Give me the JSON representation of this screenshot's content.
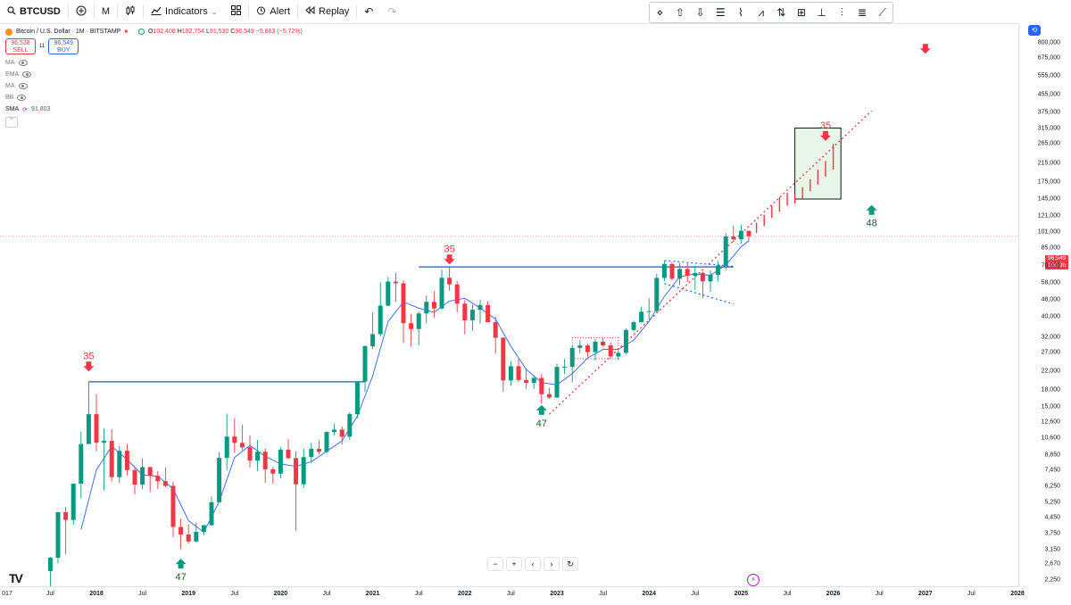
{
  "toolbar": {
    "symbol": "BTCUSD",
    "add_icon": "plus-circle-icon",
    "interval": "M",
    "chart_type_icon": "candles-icon",
    "indicators_label": "Indicators",
    "layout_icon": "grid-icon",
    "alert_label": "Alert",
    "replay_label": "Replay",
    "undo_icon": "undo-icon",
    "redo_icon": "redo-icon"
  },
  "drawing_tools": [
    "diamond-icon",
    "arrow-up-icon",
    "arrow-down-icon",
    "fib-icon",
    "pattern-icon",
    "zigzag-icon",
    "forecast-icon",
    "long-position-icon",
    "measure-icon",
    "bars-pattern-icon",
    "fib-channel-icon",
    "trend-line-icon"
  ],
  "legend": {
    "title": "Bitcoin / U.S. Dollar · 1M · BITSTAMP",
    "ohlc": {
      "o_label": "O",
      "o": "102,408",
      "h_label": "H",
      "h": "102,754",
      "l_label": "L",
      "l": "91,530",
      "c_label": "C",
      "c": "96,549",
      "change": "−5,863 (−5.72%)"
    },
    "sell_price": "96,538",
    "sell_label": "SELL",
    "spread": "11",
    "buy_price": "96,549",
    "buy_label": "BUY",
    "indicators": [
      {
        "name": "MA"
      },
      {
        "name": "EMA"
      },
      {
        "name": "MA"
      },
      {
        "name": "BB"
      },
      {
        "name": "SMA",
        "value": "91,803"
      }
    ]
  },
  "price_axis": {
    "labels": [
      "800,000",
      "675,000",
      "555,000",
      "455,000",
      "375,000",
      "315,000",
      "265,000",
      "215,000",
      "175,000",
      "145,000",
      "121,000",
      "101,000",
      "85,000",
      "70,000",
      "58,000",
      "48,000",
      "40,000",
      "32,000",
      "27,000",
      "22,000",
      "18,000",
      "15,000",
      "12,600",
      "10,600",
      "8,850",
      "7,450",
      "6,250",
      "5,250",
      "4,450",
      "3,750",
      "3,150",
      "2,670",
      "2,250"
    ],
    "current_price": "96,549",
    "countdown": "19d 9h"
  },
  "time_axis": {
    "labels": [
      "017",
      "Jul",
      "2018",
      "Jul",
      "2019",
      "Jul",
      "2020",
      "Jul",
      "2021",
      "Jul",
      "2022",
      "Jul",
      "2023",
      "Jul",
      "2024",
      "Jul",
      "2025",
      "Jul",
      "2026",
      "Jul",
      "2027",
      "Jul",
      "2028"
    ]
  },
  "annotations": {
    "count_2018": "35",
    "count_2019": "47",
    "count_2021": "35",
    "count_2022": "47",
    "count_top": "35",
    "count_2026": "48"
  },
  "navigation": [
    "−",
    "+",
    "‹",
    "›",
    "↻"
  ],
  "colors": {
    "up": "#089981",
    "down": "#f23645",
    "sma": "#2962ff",
    "resistance": "#1e53e5",
    "trend": "#f23645",
    "box_fill": "#e8f5e9"
  },
  "chart_data": {
    "type": "candlestick",
    "symbol": "BTCUSD",
    "interval": "1M",
    "scale": "log",
    "ylim": [
      2100,
      900000
    ],
    "candles": [
      {
        "t": "2017-07",
        "o": 2480,
        "h": 2900,
        "l": 2000,
        "c": 2870
      },
      {
        "t": "2017-08",
        "o": 2870,
        "h": 4700,
        "l": 2700,
        "c": 4730
      },
      {
        "t": "2017-09",
        "o": 4730,
        "h": 5000,
        "l": 2980,
        "c": 4340
      },
      {
        "t": "2017-10",
        "o": 4340,
        "h": 6470,
        "l": 4100,
        "c": 6450
      },
      {
        "t": "2017-11",
        "o": 6450,
        "h": 11400,
        "l": 5500,
        "c": 9950
      },
      {
        "t": "2017-12",
        "o": 9950,
        "h": 19650,
        "l": 10800,
        "c": 13800
      },
      {
        "t": "2018-01",
        "o": 13800,
        "h": 17200,
        "l": 9200,
        "c": 10100
      },
      {
        "t": "2018-02",
        "o": 10100,
        "h": 11800,
        "l": 6000,
        "c": 10300
      },
      {
        "t": "2018-03",
        "o": 10300,
        "h": 11700,
        "l": 6600,
        "c": 6930
      },
      {
        "t": "2018-04",
        "o": 6930,
        "h": 9750,
        "l": 6500,
        "c": 9240
      },
      {
        "t": "2018-05",
        "o": 9240,
        "h": 9980,
        "l": 7050,
        "c": 7490
      },
      {
        "t": "2018-06",
        "o": 7490,
        "h": 7770,
        "l": 5750,
        "c": 6390
      },
      {
        "t": "2018-07",
        "o": 6390,
        "h": 8490,
        "l": 6070,
        "c": 7730
      },
      {
        "t": "2018-08",
        "o": 7730,
        "h": 7760,
        "l": 5880,
        "c": 7030
      },
      {
        "t": "2018-09",
        "o": 7030,
        "h": 7400,
        "l": 6100,
        "c": 6630
      },
      {
        "t": "2018-10",
        "o": 6630,
        "h": 7700,
        "l": 6200,
        "c": 6300
      },
      {
        "t": "2018-11",
        "o": 6300,
        "h": 6580,
        "l": 3600,
        "c": 4020
      },
      {
        "t": "2018-12",
        "o": 4020,
        "h": 4400,
        "l": 3150,
        "c": 3700
      },
      {
        "t": "2019-01",
        "o": 3700,
        "h": 4140,
        "l": 3350,
        "c": 3430
      },
      {
        "t": "2019-02",
        "o": 3430,
        "h": 4200,
        "l": 3400,
        "c": 3810
      },
      {
        "t": "2019-03",
        "o": 3810,
        "h": 4100,
        "l": 3670,
        "c": 4100
      },
      {
        "t": "2019-04",
        "o": 4100,
        "h": 5600,
        "l": 4050,
        "c": 5270
      },
      {
        "t": "2019-05",
        "o": 5270,
        "h": 9100,
        "l": 5300,
        "c": 8550
      },
      {
        "t": "2019-06",
        "o": 8550,
        "h": 13880,
        "l": 7500,
        "c": 10800
      },
      {
        "t": "2019-07",
        "o": 10800,
        "h": 13200,
        "l": 9070,
        "c": 10080
      },
      {
        "t": "2019-08",
        "o": 10080,
        "h": 12300,
        "l": 9300,
        "c": 9600
      },
      {
        "t": "2019-09",
        "o": 9600,
        "h": 10900,
        "l": 7700,
        "c": 8300
      },
      {
        "t": "2019-10",
        "o": 8300,
        "h": 10400,
        "l": 7400,
        "c": 9150
      },
      {
        "t": "2019-11",
        "o": 9150,
        "h": 9500,
        "l": 6500,
        "c": 7550
      },
      {
        "t": "2019-12",
        "o": 7550,
        "h": 7750,
        "l": 6430,
        "c": 7200
      },
      {
        "t": "2020-01",
        "o": 7200,
        "h": 9580,
        "l": 6850,
        "c": 9350
      },
      {
        "t": "2020-02",
        "o": 9350,
        "h": 10500,
        "l": 8450,
        "c": 8530
      },
      {
        "t": "2020-03",
        "o": 8530,
        "h": 9200,
        "l": 3850,
        "c": 6410
      },
      {
        "t": "2020-04",
        "o": 6410,
        "h": 9460,
        "l": 6150,
        "c": 8630
      },
      {
        "t": "2020-05",
        "o": 8630,
        "h": 10080,
        "l": 8100,
        "c": 9450
      },
      {
        "t": "2020-06",
        "o": 9450,
        "h": 10400,
        "l": 8900,
        "c": 9140
      },
      {
        "t": "2020-07",
        "o": 9140,
        "h": 11450,
        "l": 8990,
        "c": 11350
      },
      {
        "t": "2020-08",
        "o": 11350,
        "h": 12470,
        "l": 10950,
        "c": 11650
      },
      {
        "t": "2020-09",
        "o": 11650,
        "h": 12080,
        "l": 9900,
        "c": 10780
      },
      {
        "t": "2020-10",
        "o": 10780,
        "h": 14100,
        "l": 10400,
        "c": 13800
      },
      {
        "t": "2020-11",
        "o": 13800,
        "h": 19860,
        "l": 13200,
        "c": 19700
      },
      {
        "t": "2020-12",
        "o": 19700,
        "h": 29300,
        "l": 17600,
        "c": 28990
      },
      {
        "t": "2021-01",
        "o": 28990,
        "h": 41950,
        "l": 28130,
        "c": 33100
      },
      {
        "t": "2021-02",
        "o": 33100,
        "h": 58350,
        "l": 32300,
        "c": 45200
      },
      {
        "t": "2021-03",
        "o": 45200,
        "h": 61780,
        "l": 45000,
        "c": 58800
      },
      {
        "t": "2021-04",
        "o": 58800,
        "h": 64900,
        "l": 47000,
        "c": 57700
      },
      {
        "t": "2021-05",
        "o": 57700,
        "h": 59600,
        "l": 30000,
        "c": 37300
      },
      {
        "t": "2021-06",
        "o": 37300,
        "h": 41300,
        "l": 28800,
        "c": 35000
      },
      {
        "t": "2021-07",
        "o": 35000,
        "h": 42300,
        "l": 29300,
        "c": 41500
      },
      {
        "t": "2021-08",
        "o": 41500,
        "h": 50500,
        "l": 37300,
        "c": 47100
      },
      {
        "t": "2021-09",
        "o": 47100,
        "h": 52900,
        "l": 39600,
        "c": 43800
      },
      {
        "t": "2021-10",
        "o": 43800,
        "h": 66990,
        "l": 43300,
        "c": 61300
      },
      {
        "t": "2021-11",
        "o": 61300,
        "h": 69000,
        "l": 53250,
        "c": 57000
      },
      {
        "t": "2021-12",
        "o": 57000,
        "h": 59100,
        "l": 42000,
        "c": 46200
      },
      {
        "t": "2022-01",
        "o": 46200,
        "h": 47990,
        "l": 32950,
        "c": 38500
      },
      {
        "t": "2022-02",
        "o": 38500,
        "h": 45800,
        "l": 34300,
        "c": 43200
      },
      {
        "t": "2022-03",
        "o": 43200,
        "h": 48200,
        "l": 37200,
        "c": 45500
      },
      {
        "t": "2022-04",
        "o": 45500,
        "h": 47450,
        "l": 37700,
        "c": 37700
      },
      {
        "t": "2022-05",
        "o": 37700,
        "h": 39950,
        "l": 26700,
        "c": 31800
      },
      {
        "t": "2022-06",
        "o": 31800,
        "h": 31980,
        "l": 17600,
        "c": 19950
      },
      {
        "t": "2022-07",
        "o": 19950,
        "h": 24650,
        "l": 18800,
        "c": 23300
      },
      {
        "t": "2022-08",
        "o": 23300,
        "h": 25200,
        "l": 19600,
        "c": 20050
      },
      {
        "t": "2022-09",
        "o": 20050,
        "h": 22800,
        "l": 18200,
        "c": 19420
      },
      {
        "t": "2022-10",
        "o": 19420,
        "h": 21080,
        "l": 18200,
        "c": 20500
      },
      {
        "t": "2022-11",
        "o": 20500,
        "h": 21450,
        "l": 15480,
        "c": 17170
      },
      {
        "t": "2022-12",
        "o": 17170,
        "h": 18400,
        "l": 16300,
        "c": 16540
      },
      {
        "t": "2023-01",
        "o": 16540,
        "h": 23950,
        "l": 16500,
        "c": 23130
      },
      {
        "t": "2023-02",
        "o": 23130,
        "h": 25250,
        "l": 21400,
        "c": 23150
      },
      {
        "t": "2023-03",
        "o": 23150,
        "h": 29200,
        "l": 19550,
        "c": 28480
      },
      {
        "t": "2023-04",
        "o": 28480,
        "h": 31000,
        "l": 26800,
        "c": 29250
      },
      {
        "t": "2023-05",
        "o": 29250,
        "h": 29850,
        "l": 25800,
        "c": 27200
      },
      {
        "t": "2023-06",
        "o": 27200,
        "h": 31450,
        "l": 24800,
        "c": 30480
      },
      {
        "t": "2023-07",
        "o": 30480,
        "h": 31800,
        "l": 28850,
        "c": 29250
      },
      {
        "t": "2023-08",
        "o": 29250,
        "h": 30220,
        "l": 25300,
        "c": 25950
      },
      {
        "t": "2023-09",
        "o": 25950,
        "h": 27490,
        "l": 24900,
        "c": 26970
      },
      {
        "t": "2023-10",
        "o": 26970,
        "h": 35200,
        "l": 26550,
        "c": 34650
      },
      {
        "t": "2023-11",
        "o": 34650,
        "h": 38400,
        "l": 34100,
        "c": 37720
      },
      {
        "t": "2023-12",
        "o": 37720,
        "h": 44700,
        "l": 37600,
        "c": 42280
      },
      {
        "t": "2024-01",
        "o": 42280,
        "h": 48970,
        "l": 38550,
        "c": 42580
      },
      {
        "t": "2024-02",
        "o": 42580,
        "h": 64000,
        "l": 41900,
        "c": 61200
      },
      {
        "t": "2024-03",
        "o": 61200,
        "h": 73800,
        "l": 59100,
        "c": 71300
      },
      {
        "t": "2024-04",
        "o": 71300,
        "h": 72750,
        "l": 59500,
        "c": 60650
      },
      {
        "t": "2024-05",
        "o": 60650,
        "h": 72000,
        "l": 56500,
        "c": 67500
      },
      {
        "t": "2024-06",
        "o": 67500,
        "h": 71950,
        "l": 58400,
        "c": 62700
      },
      {
        "t": "2024-07",
        "o": 62700,
        "h": 70000,
        "l": 53400,
        "c": 64600
      },
      {
        "t": "2024-08",
        "o": 64600,
        "h": 65600,
        "l": 49000,
        "c": 58950
      },
      {
        "t": "2024-09",
        "o": 58950,
        "h": 66500,
        "l": 52600,
        "c": 63300
      },
      {
        "t": "2024-10",
        "o": 63300,
        "h": 73550,
        "l": 58900,
        "c": 70200
      },
      {
        "t": "2024-11",
        "o": 70200,
        "h": 99800,
        "l": 66800,
        "c": 96400
      },
      {
        "t": "2024-12",
        "o": 96400,
        "h": 108300,
        "l": 90500,
        "c": 93400
      },
      {
        "t": "2025-01",
        "o": 93400,
        "h": 109500,
        "l": 89200,
        "c": 102408
      },
      {
        "t": "2025-02",
        "o": 102408,
        "h": 102754,
        "l": 91530,
        "c": 96549
      }
    ],
    "projection_bars": [
      {
        "t": "2025-03",
        "l": 100000,
        "h": 112000
      },
      {
        "t": "2025-04",
        "l": 108000,
        "h": 122000
      },
      {
        "t": "2025-05",
        "l": 118000,
        "h": 135000
      },
      {
        "t": "2025-06",
        "l": 126000,
        "h": 148000
      },
      {
        "t": "2025-07",
        "l": 135000,
        "h": 155000
      },
      {
        "t": "2025-08",
        "l": 138000,
        "h": 152000
      },
      {
        "t": "2025-09",
        "l": 145000,
        "h": 165000
      },
      {
        "t": "2025-10",
        "l": 158000,
        "h": 180000
      },
      {
        "t": "2025-11",
        "l": 170000,
        "h": 200000
      },
      {
        "t": "2025-12",
        "l": 185000,
        "h": 220000
      },
      {
        "t": "2026-01",
        "l": 200000,
        "h": 265000
      }
    ],
    "sma": [
      {
        "t": "2017-11",
        "v": 3900
      },
      {
        "t": "2018-01",
        "v": 7500
      },
      {
        "t": "2018-03",
        "v": 9700
      },
      {
        "t": "2018-05",
        "v": 8400
      },
      {
        "t": "2018-07",
        "v": 7100
      },
      {
        "t": "2018-09",
        "v": 7000
      },
      {
        "t": "2018-11",
        "v": 6100
      },
      {
        "t": "2019-01",
        "v": 4300
      },
      {
        "t": "2019-03",
        "v": 3800
      },
      {
        "t": "2019-05",
        "v": 5300
      },
      {
        "t": "2019-07",
        "v": 8600
      },
      {
        "t": "2019-09",
        "v": 9800
      },
      {
        "t": "2019-11",
        "v": 8700
      },
      {
        "t": "2020-01",
        "v": 8000
      },
      {
        "t": "2020-03",
        "v": 7800
      },
      {
        "t": "2020-05",
        "v": 8200
      },
      {
        "t": "2020-07",
        "v": 9200
      },
      {
        "t": "2020-09",
        "v": 10300
      },
      {
        "t": "2020-11",
        "v": 13500
      },
      {
        "t": "2021-01",
        "v": 21000
      },
      {
        "t": "2021-03",
        "v": 38000
      },
      {
        "t": "2021-05",
        "v": 47000
      },
      {
        "t": "2021-07",
        "v": 44000
      },
      {
        "t": "2021-09",
        "v": 42000
      },
      {
        "t": "2021-11",
        "v": 47500
      },
      {
        "t": "2022-01",
        "v": 49000
      },
      {
        "t": "2022-03",
        "v": 44000
      },
      {
        "t": "2022-05",
        "v": 39000
      },
      {
        "t": "2022-07",
        "v": 29000
      },
      {
        "t": "2022-09",
        "v": 22500
      },
      {
        "t": "2022-11",
        "v": 19500
      },
      {
        "t": "2023-01",
        "v": 19000
      },
      {
        "t": "2023-03",
        "v": 21500
      },
      {
        "t": "2023-05",
        "v": 25500
      },
      {
        "t": "2023-07",
        "v": 28000
      },
      {
        "t": "2023-09",
        "v": 28000
      },
      {
        "t": "2023-11",
        "v": 31000
      },
      {
        "t": "2024-01",
        "v": 38000
      },
      {
        "t": "2024-03",
        "v": 50000
      },
      {
        "t": "2024-05",
        "v": 62000
      },
      {
        "t": "2024-07",
        "v": 64000
      },
      {
        "t": "2024-09",
        "v": 63000
      },
      {
        "t": "2024-11",
        "v": 70500
      },
      {
        "t": "2025-01",
        "v": 86000
      },
      {
        "t": "2025-02",
        "v": 91803
      }
    ],
    "resistance_lines": [
      {
        "from": "2017-12",
        "to": "2020-12",
        "price": 19650
      },
      {
        "from": "2021-07",
        "to": "2024-12",
        "price": 69000
      }
    ],
    "trend_line": {
      "from": {
        "t": "2022-12",
        "p": 13800
      },
      "to": {
        "t": "2026-06",
        "p": 380000
      }
    },
    "triangle": {
      "upper_from": {
        "t": "2024-03",
        "p": 74000
      },
      "upper_to": {
        "t": "2024-12",
        "p": 69500
      },
      "lower_from": {
        "t": "2024-03",
        "p": 57500
      },
      "lower_to": {
        "t": "2024-12",
        "p": 46000
      }
    },
    "range_box_2023": {
      "from": "2023-03",
      "to": "2023-09",
      "top": 31800,
      "bottom": 25300
    },
    "target_box": {
      "from": "2025-08",
      "to": "2026-02",
      "top": 315000,
      "bottom": 145000
    },
    "markers": [
      {
        "t": "2017-12",
        "type": "sell",
        "label": "35",
        "price": 24500
      },
      {
        "t": "2018-12",
        "type": "buy",
        "label": "47",
        "price": 2550
      },
      {
        "t": "2021-11",
        "type": "sell",
        "label": "35",
        "price": 79000
      },
      {
        "t": "2022-11",
        "type": "buy",
        "label": "47",
        "price": 13700
      },
      {
        "t": "2025-12",
        "type": "sell",
        "label": "35",
        "price": 305000
      },
      {
        "t": "2026-06",
        "type": "buy",
        "label": "48",
        "price": 122000
      },
      {
        "t": "2027-01",
        "type": "sell",
        "label": "",
        "price": 790000
      }
    ],
    "current_price": 96549
  }
}
